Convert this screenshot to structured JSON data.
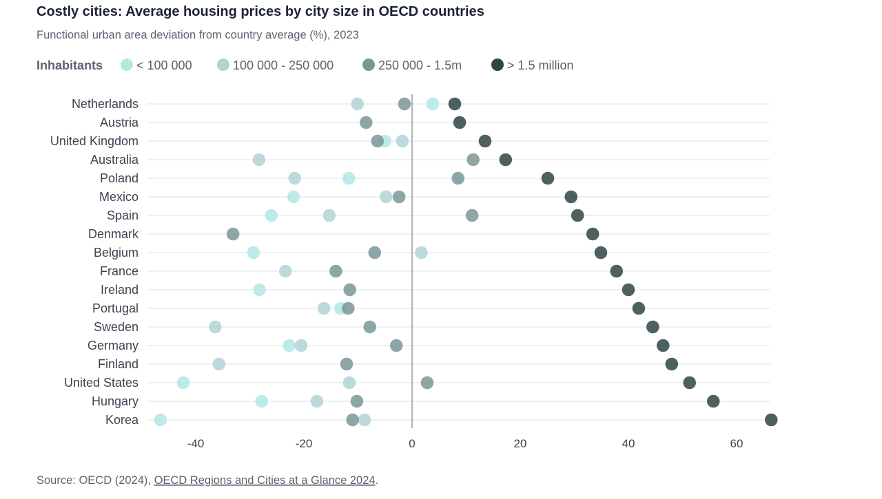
{
  "chart_data": {
    "type": "scatter",
    "title": "Costly cities: Average housing prices by city size in OECD countries",
    "subtitle": "Functional urban area deviation from country average (%), 2023",
    "legend_title": "Inhabitants",
    "legend_placement": "top-left",
    "xlim": [
      -50,
      70
    ],
    "xticks": [
      -40,
      -20,
      0,
      20,
      40,
      60
    ],
    "grid": false,
    "categories": [
      "Netherlands",
      "Austria",
      "United Kingdom",
      "Australia",
      "Poland",
      "Mexico",
      "Spain",
      "Denmark",
      "Belgium",
      "France",
      "Ireland",
      "Portugal",
      "Sweden",
      "Germany",
      "Finland",
      "United States",
      "Hungary",
      "Korea"
    ],
    "series": [
      {
        "name": "< 100 000",
        "color": "#b3e8e4",
        "values": [
          3.8,
          null,
          -5.0,
          null,
          -11.7,
          -21.9,
          -26.0,
          null,
          -29.3,
          null,
          -28.2,
          -13.2,
          null,
          -22.7,
          null,
          -42.3,
          -27.8,
          -46.5
        ]
      },
      {
        "name": "100 000 - 250 000",
        "color": "#b0d3d5",
        "values": [
          -10.1,
          null,
          -1.8,
          -28.3,
          -21.7,
          -4.8,
          -15.3,
          null,
          1.7,
          -23.4,
          null,
          -16.3,
          -36.4,
          -20.5,
          -35.7,
          -11.6,
          -17.6,
          -8.8
        ]
      },
      {
        "name": "250 000 - 1.5m",
        "color": "#7a9697",
        "values": [
          -1.4,
          -8.5,
          -6.4,
          11.3,
          8.5,
          -2.4,
          11.1,
          -33.1,
          -6.9,
          -14.1,
          -11.5,
          -11.8,
          -7.8,
          -2.9,
          -12.1,
          2.8,
          -10.2,
          -11.0
        ]
      },
      {
        "name": "> 1.5 million",
        "color": "#2f4444",
        "values": [
          7.9,
          8.8,
          13.5,
          17.3,
          25.1,
          29.4,
          30.6,
          33.4,
          34.9,
          37.8,
          40.0,
          41.9,
          44.5,
          46.4,
          48.0,
          51.3,
          55.7,
          66.4
        ]
      }
    ]
  },
  "source": {
    "prefix": "Source: OECD (2024), ",
    "link": "OECD Regions and Cities at a Glance 2024",
    "suffix": "."
  }
}
